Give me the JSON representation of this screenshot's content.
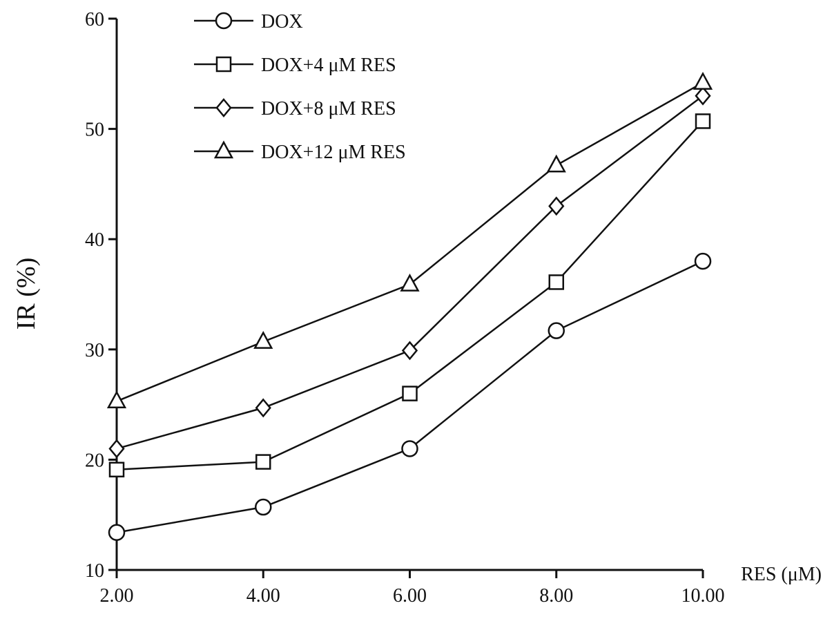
{
  "chart_data": {
    "type": "line",
    "title": "",
    "xlabel": "RES (μM)",
    "ylabel": "IR (%)",
    "x": [
      2,
      4,
      6,
      8,
      10
    ],
    "xtick_labels": [
      "2.00",
      "4.00",
      "6.00",
      "8.00",
      "10.00"
    ],
    "xlim": [
      2,
      10
    ],
    "ylim": [
      10,
      60
    ],
    "yticks": [
      10,
      20,
      30,
      40,
      50,
      60
    ],
    "ytick_labels": [
      "10",
      "20",
      "30",
      "40",
      "50",
      "60"
    ],
    "grid": false,
    "legend_position": "top-left",
    "series": [
      {
        "name": "DOX",
        "marker": "circle",
        "values": [
          13.4,
          15.7,
          21.0,
          31.7,
          38.0
        ]
      },
      {
        "name": "DOX+4 μM RES",
        "marker": "square",
        "values": [
          19.1,
          19.8,
          26.0,
          36.1,
          50.7
        ]
      },
      {
        "name": "DOX+8 μM RES",
        "marker": "diamond",
        "values": [
          21.0,
          24.7,
          29.9,
          43.0,
          53.0
        ]
      },
      {
        "name": "DOX+12 μM RES",
        "marker": "triangle",
        "values": [
          25.3,
          30.7,
          35.9,
          46.7,
          54.2
        ]
      }
    ],
    "colors": {
      "line": "#111111",
      "marker_fill": "#ffffff"
    }
  }
}
